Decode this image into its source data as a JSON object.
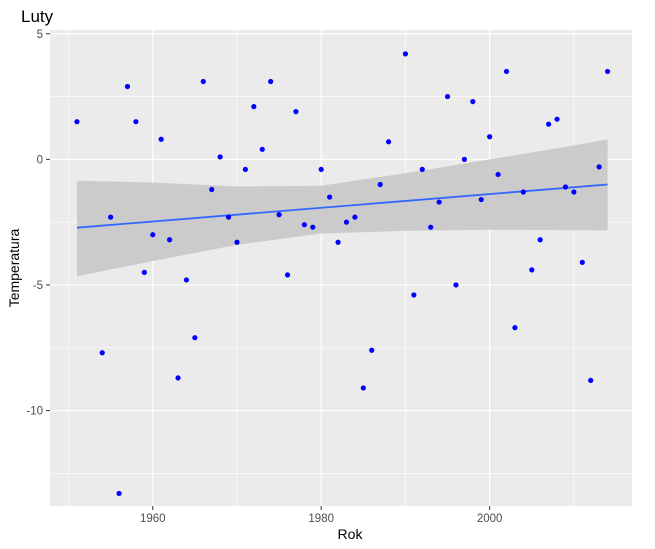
{
  "chart_data": {
    "type": "scatter",
    "title": "Luty",
    "xlabel": "Rok",
    "ylabel": "Temperatura",
    "xlim": [
      1947.8,
      2016.9
    ],
    "ylim": [
      -13.8,
      5.15
    ],
    "x_ticks": [
      1960,
      1980,
      2000
    ],
    "y_ticks": [
      5,
      0,
      -5,
      -10
    ],
    "x_tick_labels": [
      "1960",
      "1980",
      "2000"
    ],
    "y_tick_labels": [
      "5",
      "0",
      "-5",
      "-10"
    ],
    "grid": true,
    "legend": "none",
    "point_color": "#0000ff",
    "points": [
      {
        "x": 1951,
        "y": 1.5
      },
      {
        "x": 1954,
        "y": -7.7
      },
      {
        "x": 1955,
        "y": -2.3
      },
      {
        "x": 1956,
        "y": -13.3
      },
      {
        "x": 1957,
        "y": 2.9
      },
      {
        "x": 1958,
        "y": 1.5
      },
      {
        "x": 1959,
        "y": -4.5
      },
      {
        "x": 1960,
        "y": -3.0
      },
      {
        "x": 1961,
        "y": 0.8
      },
      {
        "x": 1962,
        "y": -3.2
      },
      {
        "x": 1963,
        "y": -8.7
      },
      {
        "x": 1964,
        "y": -4.8
      },
      {
        "x": 1965,
        "y": -7.1
      },
      {
        "x": 1966,
        "y": 3.1
      },
      {
        "x": 1967,
        "y": -1.2
      },
      {
        "x": 1968,
        "y": 0.1
      },
      {
        "x": 1969,
        "y": -2.3
      },
      {
        "x": 1970,
        "y": -3.3
      },
      {
        "x": 1971,
        "y": -0.4
      },
      {
        "x": 1972,
        "y": 2.1
      },
      {
        "x": 1973,
        "y": 0.4
      },
      {
        "x": 1974,
        "y": 3.1
      },
      {
        "x": 1975,
        "y": -2.2
      },
      {
        "x": 1976,
        "y": -4.6
      },
      {
        "x": 1977,
        "y": 1.9
      },
      {
        "x": 1978,
        "y": -2.6
      },
      {
        "x": 1979,
        "y": -2.7
      },
      {
        "x": 1980,
        "y": -0.4
      },
      {
        "x": 1981,
        "y": -1.5
      },
      {
        "x": 1982,
        "y": -3.3
      },
      {
        "x": 1983,
        "y": -2.5
      },
      {
        "x": 1984,
        "y": -2.3
      },
      {
        "x": 1985,
        "y": -9.1
      },
      {
        "x": 1986,
        "y": -7.6
      },
      {
        "x": 1987,
        "y": -1.0
      },
      {
        "x": 1988,
        "y": 0.7
      },
      {
        "x": 1990,
        "y": 4.2
      },
      {
        "x": 1991,
        "y": -5.4
      },
      {
        "x": 1992,
        "y": -0.4
      },
      {
        "x": 1993,
        "y": -2.7
      },
      {
        "x": 1994,
        "y": -1.7
      },
      {
        "x": 1995,
        "y": 2.5
      },
      {
        "x": 1996,
        "y": -5.0
      },
      {
        "x": 1997,
        "y": 0.0
      },
      {
        "x": 1998,
        "y": 2.3
      },
      {
        "x": 1999,
        "y": -1.6
      },
      {
        "x": 2000,
        "y": 0.9
      },
      {
        "x": 2001,
        "y": -0.6
      },
      {
        "x": 2002,
        "y": 3.5
      },
      {
        "x": 2003,
        "y": -6.7
      },
      {
        "x": 2004,
        "y": -1.3
      },
      {
        "x": 2005,
        "y": -4.4
      },
      {
        "x": 2006,
        "y": -3.2
      },
      {
        "x": 2007,
        "y": 1.4
      },
      {
        "x": 2008,
        "y": 1.6
      },
      {
        "x": 2009,
        "y": -1.1
      },
      {
        "x": 2010,
        "y": -1.3
      },
      {
        "x": 2011,
        "y": -4.1
      },
      {
        "x": 2012,
        "y": -8.8
      },
      {
        "x": 2013,
        "y": -0.3
      },
      {
        "x": 2014,
        "y": 3.5
      }
    ],
    "trend_line": {
      "method": "linear",
      "color": "#3366ff",
      "x": [
        1951,
        2014
      ],
      "y": [
        -2.72,
        -1.0
      ],
      "confidence_band": {
        "color": "#c8c8c8",
        "x": [
          1951,
          1960,
          1970,
          1980,
          1990,
          2000,
          2010,
          2014
        ],
        "lower": [
          -4.65,
          -4.05,
          -3.4,
          -2.95,
          -2.85,
          -2.8,
          -2.82,
          -2.83
        ],
        "upper": [
          -0.85,
          -0.92,
          -1.08,
          -1.05,
          -0.55,
          0.0,
          0.55,
          0.8
        ]
      }
    }
  }
}
